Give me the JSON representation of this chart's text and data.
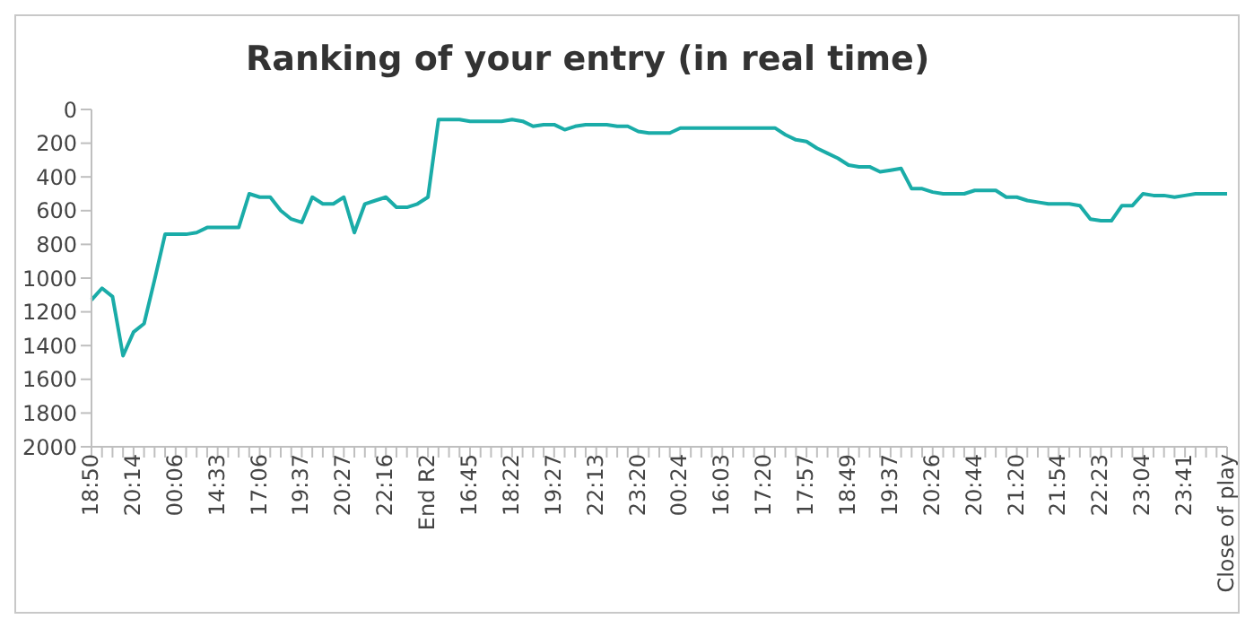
{
  "chart_data": {
    "type": "line",
    "title": "Ranking of your entry (in real time)",
    "categories": [
      "18:50",
      null,
      null,
      null,
      "20:14",
      null,
      null,
      null,
      "00:06",
      null,
      null,
      null,
      "14:33",
      null,
      null,
      null,
      "17:06",
      null,
      null,
      null,
      "19:37",
      null,
      null,
      null,
      "20:27",
      null,
      null,
      null,
      "22:16",
      null,
      null,
      null,
      "End R2",
      null,
      null,
      null,
      "16:45",
      null,
      null,
      null,
      "18:22",
      null,
      null,
      null,
      "19:27",
      null,
      null,
      null,
      "22:13",
      null,
      null,
      null,
      "23:20",
      null,
      null,
      null,
      "00:24",
      null,
      null,
      null,
      "16:03",
      null,
      null,
      null,
      "17:20",
      null,
      null,
      null,
      "17:57",
      null,
      null,
      null,
      "18:49",
      null,
      null,
      null,
      "19:37",
      null,
      null,
      null,
      "20:26",
      null,
      null,
      null,
      "20:44",
      null,
      null,
      null,
      "21:20",
      null,
      null,
      null,
      "21:54",
      null,
      null,
      null,
      "22:23",
      null,
      null,
      null,
      "23:04",
      null,
      null,
      null,
      "23:41",
      null,
      null,
      null,
      "Close of play"
    ],
    "series": [
      {
        "color": "#1aaca8",
        "values": [
          1130,
          1060,
          1110,
          1460,
          1320,
          1270,
          1010,
          740,
          740,
          740,
          730,
          700,
          700,
          700,
          700,
          500,
          520,
          520,
          600,
          650,
          670,
          520,
          560,
          560,
          520,
          730,
          560,
          540,
          520,
          580,
          580,
          560,
          520,
          60,
          60,
          60,
          70,
          70,
          70,
          70,
          60,
          70,
          100,
          90,
          90,
          120,
          100,
          90,
          90,
          90,
          100,
          100,
          130,
          140,
          140,
          140,
          110,
          110,
          110,
          110,
          110,
          110,
          110,
          110,
          110,
          110,
          150,
          180,
          190,
          230,
          260,
          290,
          330,
          340,
          340,
          370,
          360,
          350,
          470,
          470,
          490,
          500,
          500,
          500,
          480,
          480,
          480,
          520,
          520,
          540,
          550,
          560,
          560,
          560,
          570,
          650,
          660,
          660,
          570,
          570,
          500,
          510,
          510,
          520,
          510,
          500,
          500,
          500,
          500
        ]
      }
    ],
    "ylim": [
      2000,
      0
    ],
    "yticks": [
      0,
      200,
      400,
      600,
      800,
      1000,
      1200,
      1400,
      1600,
      1800,
      2000
    ],
    "grid": false,
    "legend": false,
    "marker": "none",
    "line_style": "solid"
  }
}
